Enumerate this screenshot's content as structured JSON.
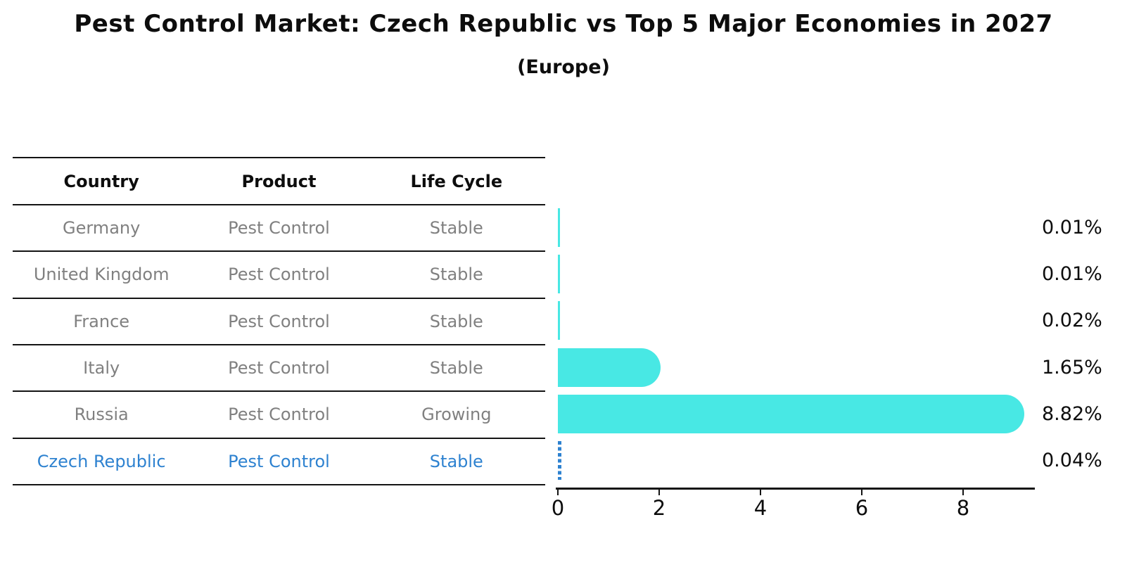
{
  "title": "Pest Control Market: Czech Republic vs Top 5 Major Economies in 2027",
  "subtitle": "(Europe)",
  "table": {
    "headers": [
      "Country",
      "Product",
      "Life Cycle"
    ],
    "rows": [
      {
        "country": "Germany",
        "product": "Pest Control",
        "life_cycle": "Stable",
        "highlight": false
      },
      {
        "country": "United Kingdom",
        "product": "Pest Control",
        "life_cycle": "Stable",
        "highlight": false
      },
      {
        "country": "France",
        "product": "Pest Control",
        "life_cycle": "Stable",
        "highlight": false
      },
      {
        "country": "Italy",
        "product": "Pest Control",
        "life_cycle": "Stable",
        "highlight": false
      },
      {
        "country": "Russia",
        "product": "Pest Control",
        "life_cycle": "Growing",
        "highlight": false
      },
      {
        "country": "Czech Republic",
        "product": "Pest Control",
        "life_cycle": "Stable",
        "highlight": true
      }
    ]
  },
  "chart_data": {
    "type": "bar",
    "orientation": "horizontal",
    "categories": [
      "Germany",
      "United Kingdom",
      "France",
      "Italy",
      "Russia",
      "Czech Republic"
    ],
    "values": [
      0.01,
      0.01,
      0.02,
      1.65,
      8.82,
      0.04
    ],
    "value_labels": [
      "0.01%",
      "0.01%",
      "0.02%",
      "1.65%",
      "8.82%",
      "0.04%"
    ],
    "x_ticks": [
      0,
      2,
      4,
      6,
      8
    ],
    "xlim": [
      0,
      9.4
    ],
    "grid": false,
    "legend": false,
    "bar_color": "#48e8e4",
    "highlight_color": "#2e82d0",
    "highlight_index": 5,
    "highlight_style": "dashed"
  },
  "colors": {
    "text": "#0d0d0d",
    "muted_text": "#808080",
    "line": "#141414",
    "bar": "#48e8e4",
    "highlight": "#2e82d0"
  }
}
